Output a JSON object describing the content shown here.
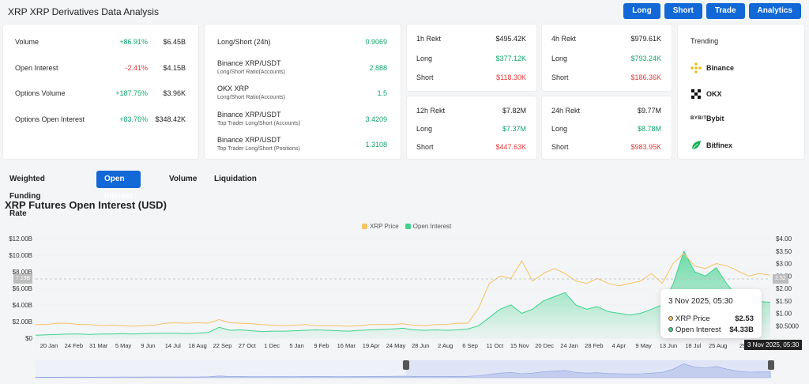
{
  "header": {
    "title": "XRP XRP Derivatives Data Analysis",
    "buttons": [
      "Long",
      "Short",
      "Trade",
      "Analytics"
    ]
  },
  "overview": [
    {
      "label": "Volume",
      "change": "+86.91%",
      "value": "$6.45B",
      "dir": "up"
    },
    {
      "label": "Open Interest",
      "change": "-2.41%",
      "value": "$4.15B",
      "dir": "down"
    },
    {
      "label": "Options Volume",
      "change": "+187.75%",
      "value": "$3.96K",
      "dir": "up"
    },
    {
      "label": "Options Open Interest",
      "change": "+83.76%",
      "value": "$348.42K",
      "dir": "up"
    }
  ],
  "ratios": [
    {
      "label": "Long/Short (24h)",
      "sub": "",
      "value": "0.9069"
    },
    {
      "label": "Binance XRP/USDT",
      "sub": "Long/Short Ratio(Accounts)",
      "value": "2.888"
    },
    {
      "label": "OKX XRP",
      "sub": "Long/Short Ratio(Accounts)",
      "value": "1.5"
    },
    {
      "label": "Binance XRP/USDT",
      "sub": "Top Trader Long/Short (Accounts)",
      "value": "3.4209"
    },
    {
      "label": "Binance XRP/USDT",
      "sub": "Top Trader Long/Short (Positions)",
      "value": "1.3108"
    }
  ],
  "rekt": [
    {
      "title": "1h Rekt",
      "total": "$495.42K",
      "long_label": "Long",
      "long": "$377.12K",
      "short_label": "Short",
      "short": "$118.30K"
    },
    {
      "title": "4h Rekt",
      "total": "$979.61K",
      "long_label": "Long",
      "long": "$793.24K",
      "short_label": "Short",
      "short": "$186.36K"
    },
    {
      "title": "12h Rekt",
      "total": "$7.82M",
      "long_label": "Long",
      "long": "$7.37M",
      "short_label": "Short",
      "short": "$447.63K"
    },
    {
      "title": "24h Rekt",
      "total": "$9.77M",
      "long_label": "Long",
      "long": "$8.78M",
      "short_label": "Short",
      "short": "$983.95K"
    }
  ],
  "trending": {
    "title": "Trending",
    "items": [
      "Binance",
      "OKX",
      "Bybit",
      "Bitfinex"
    ],
    "bybit_logo": "BYBIT"
  },
  "tabs": [
    "Weighted Funding Rate",
    "Open Interest",
    "Volume",
    "Liquidation"
  ],
  "active_tab": 1,
  "chart_title": "XRP Futures Open Interest (USD)",
  "colors": {
    "accent": "#1268d6",
    "price": "#f5c265",
    "oi": "#3fd38c",
    "up": "#12a86d",
    "down": "#e8393b"
  },
  "tooltip": {
    "date": "3 Nov 2025, 05:30",
    "price_label": "XRP Price",
    "price": "$2.53",
    "oi_label": "Open Interest",
    "oi": "$4.33B"
  },
  "cursor": {
    "left_value": "7.19B",
    "right_value": "2.52",
    "date": "3 Nov 2025, 05:30"
  },
  "chart_data": {
    "type": "area",
    "legend": [
      "XRP Price",
      "Open Interest"
    ],
    "legend_position": "top-center",
    "x_ticks": [
      "20 Jan",
      "24 Feb",
      "31 Mar",
      "5 May",
      "9 Jun",
      "14 Jul",
      "18 Aug",
      "22 Sep",
      "27 Oct",
      "1 Dec",
      "5 Jan",
      "9 Feb",
      "16 Mar",
      "19 Apr",
      "24 May",
      "28 Jun",
      "2 Aug",
      "6 Sep",
      "11 Oct",
      "15 Nov",
      "20 Dec",
      "24 Jan",
      "28 Feb",
      "4 Apr",
      "9 May",
      "13 Jun",
      "18 Jul",
      "25 Aug",
      "29"
    ],
    "y_left_ticks": [
      "$0",
      "$2.00B",
      "$4.00B",
      "$6.00B",
      "$8.00B",
      "$10.00B",
      "$12.00B"
    ],
    "y_right_ticks": [
      "$0.5000",
      "$1.00",
      "$1.50",
      "$2.00",
      "$2.50",
      "$3.00",
      "$3.50",
      "$4.00"
    ],
    "y_left_range": [
      0,
      12
    ],
    "y_right_range": [
      0,
      4
    ],
    "series": [
      {
        "name": "Open Interest",
        "axis": "left",
        "unit": "B USD",
        "values": [
          0.35,
          0.4,
          0.45,
          0.5,
          0.5,
          0.45,
          0.5,
          0.5,
          0.55,
          0.5,
          0.55,
          0.6,
          0.6,
          0.6,
          0.55,
          0.6,
          0.7,
          1.3,
          0.95,
          1.0,
          0.9,
          0.8,
          0.85,
          0.85,
          0.9,
          0.95,
          1.0,
          0.95,
          0.9,
          0.85,
          0.95,
          1.0,
          1.05,
          1.1,
          1.2,
          1.0,
          0.95,
          1.0,
          0.95,
          1.0,
          1.1,
          1.5,
          2.5,
          3.5,
          4.0,
          3.0,
          3.5,
          4.5,
          5.0,
          5.5,
          4.0,
          3.5,
          3.8,
          3.2,
          3.0,
          2.8,
          3.0,
          3.5,
          4.0,
          6.5,
          10.5,
          8.0,
          7.5,
          8.5,
          6.5,
          5.0,
          4.2,
          4.4,
          4.33
        ]
      },
      {
        "name": "XRP Price",
        "axis": "right",
        "unit": "USD",
        "values": [
          0.55,
          0.55,
          0.6,
          0.6,
          0.55,
          0.55,
          0.5,
          0.52,
          0.5,
          0.48,
          0.5,
          0.52,
          0.6,
          0.62,
          0.6,
          0.62,
          0.6,
          0.75,
          0.62,
          0.6,
          0.58,
          0.55,
          0.52,
          0.5,
          0.52,
          0.55,
          0.5,
          0.5,
          0.5,
          0.48,
          0.5,
          0.55,
          0.55,
          0.55,
          0.58,
          0.52,
          0.5,
          0.55,
          0.55,
          0.6,
          0.6,
          1.2,
          2.2,
          2.5,
          2.4,
          3.1,
          2.3,
          2.6,
          2.8,
          2.6,
          2.3,
          2.2,
          2.4,
          2.2,
          2.1,
          2.2,
          2.3,
          2.6,
          2.2,
          3.0,
          3.4,
          2.9,
          2.8,
          3.0,
          2.9,
          2.7,
          2.5,
          2.6,
          2.53
        ]
      }
    ]
  }
}
